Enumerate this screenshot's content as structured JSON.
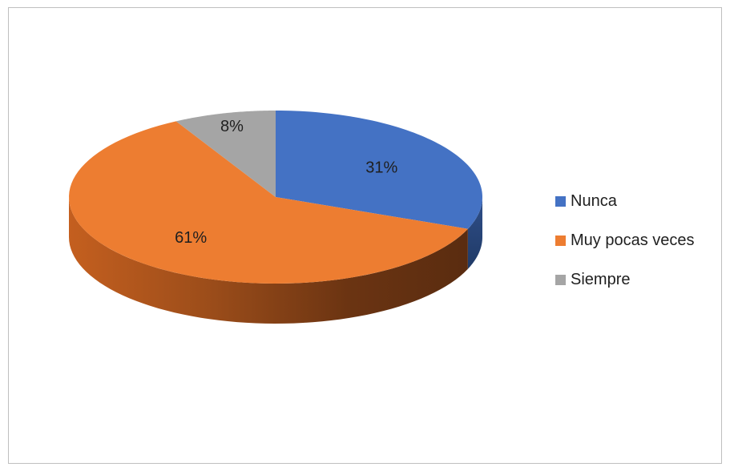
{
  "chart_data": {
    "type": "pie",
    "title": "",
    "slices": [
      {
        "label": "Nunca",
        "value": 31,
        "display": "31%",
        "color": "#4472C4"
      },
      {
        "label": "Muy pocas veces",
        "value": 61,
        "display": "61%",
        "color": "#ED7D31"
      },
      {
        "label": "Siempre",
        "value": 8,
        "display": "8%",
        "color": "#A5A5A5"
      }
    ],
    "legend_position": "right",
    "style": "3d"
  }
}
